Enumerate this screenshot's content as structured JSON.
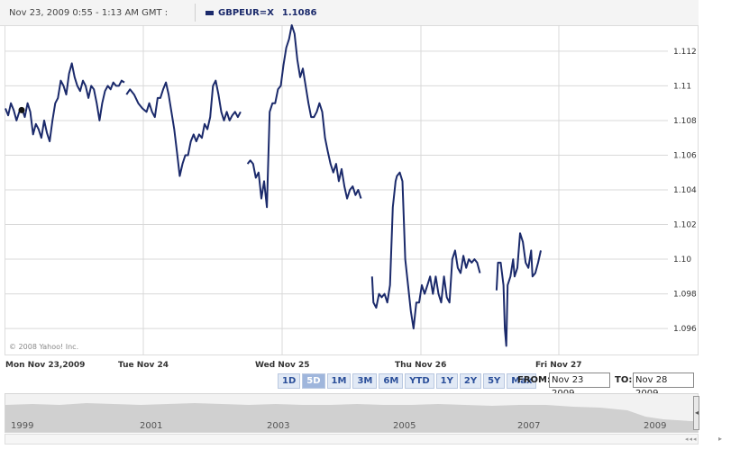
{
  "header": {
    "date_range": "Nov 23, 2009 0:55 - 1:13 AM GMT :",
    "symbol": "GBPEUR=X",
    "value": "1.1086"
  },
  "copyright": "© 2008 Yahoo! Inc.",
  "colors": {
    "line": "#1b2a6b",
    "grid": "#d9d9d9",
    "overview_fill": "#d0d0d0"
  },
  "range_buttons": [
    "1D",
    "5D",
    "1M",
    "3M",
    "6M",
    "YTD",
    "1Y",
    "2Y",
    "5Y",
    "Max"
  ],
  "active_range": "5D",
  "from_label": "FROM:",
  "from_value": "Nov 23 2009",
  "to_label": "TO:",
  "to_value": "Nov 28 2009",
  "overview_years": [
    "1999",
    "2001",
    "2003",
    "2005",
    "2007",
    "2009"
  ],
  "chart_data": {
    "type": "line",
    "series_name": "GBPEUR=X",
    "y_ticks": [
      1.096,
      1.098,
      1.1,
      1.102,
      1.104,
      1.106,
      1.108,
      1.11,
      1.112
    ],
    "y_tick_labels": [
      "1.096",
      "1.098",
      "1.10",
      "1.102",
      "1.104",
      "1.106",
      "1.108",
      "1.11",
      "1.112"
    ],
    "ylim": [
      1.0945,
      1.1135
    ],
    "x_tick_labels": [
      "Mon Nov 23,2009",
      "Tue Nov 24",
      "Wed Nov 25",
      "Thu Nov 26",
      "Fri Nov 27"
    ],
    "grid": true,
    "segments": [
      [
        [
          0.0,
          1.1087
        ],
        [
          0.04,
          1.1083
        ],
        [
          0.08,
          1.109
        ],
        [
          0.12,
          1.1086
        ],
        [
          0.16,
          1.108
        ],
        [
          0.2,
          1.1085
        ],
        [
          0.24,
          1.1087
        ],
        [
          0.28,
          1.1082
        ],
        [
          0.32,
          1.109
        ],
        [
          0.36,
          1.1085
        ],
        [
          0.4,
          1.1072
        ],
        [
          0.44,
          1.1078
        ],
        [
          0.48,
          1.1075
        ],
        [
          0.52,
          1.107
        ],
        [
          0.56,
          1.108
        ],
        [
          0.6,
          1.1073
        ],
        [
          0.64,
          1.1068
        ],
        [
          0.68,
          1.108
        ],
        [
          0.72,
          1.109
        ],
        [
          0.76,
          1.1093
        ],
        [
          0.8,
          1.1103
        ],
        [
          0.84,
          1.11
        ],
        [
          0.88,
          1.1095
        ],
        [
          0.92,
          1.1107
        ],
        [
          0.96,
          1.1113
        ],
        [
          1.0,
          1.1105
        ],
        [
          1.04,
          1.11
        ],
        [
          1.08,
          1.1097
        ],
        [
          1.12,
          1.1103
        ],
        [
          1.16,
          1.11
        ],
        [
          1.2,
          1.1093
        ],
        [
          1.24,
          1.11
        ],
        [
          1.28,
          1.1098
        ],
        [
          1.32,
          1.109
        ],
        [
          1.36,
          1.108
        ],
        [
          1.4,
          1.109
        ],
        [
          1.44,
          1.1097
        ],
        [
          1.48,
          1.11
        ],
        [
          1.52,
          1.1098
        ],
        [
          1.56,
          1.1102
        ],
        [
          1.6,
          1.11
        ],
        [
          1.64,
          1.11
        ],
        [
          1.68,
          1.1103
        ],
        [
          1.72,
          1.1102
        ]
      ],
      [
        [
          1.75,
          1.1095
        ],
        [
          1.8,
          1.1098
        ],
        [
          1.86,
          1.1095
        ],
        [
          1.92,
          1.109
        ],
        [
          1.98,
          1.1087
        ],
        [
          2.04,
          1.1085
        ],
        [
          2.08,
          1.109
        ],
        [
          2.12,
          1.1085
        ],
        [
          2.16,
          1.1082
        ],
        [
          2.2,
          1.1093
        ],
        [
          2.24,
          1.1093
        ],
        [
          2.28,
          1.1098
        ],
        [
          2.32,
          1.1102
        ],
        [
          2.36,
          1.1095
        ],
        [
          2.4,
          1.1085
        ],
        [
          2.44,
          1.1075
        ],
        [
          2.48,
          1.1062
        ],
        [
          2.52,
          1.1048
        ],
        [
          2.56,
          1.1055
        ],
        [
          2.6,
          1.106
        ],
        [
          2.64,
          1.106
        ],
        [
          2.68,
          1.1068
        ],
        [
          2.72,
          1.1072
        ],
        [
          2.76,
          1.1068
        ],
        [
          2.8,
          1.1072
        ],
        [
          2.84,
          1.107
        ],
        [
          2.88,
          1.1078
        ],
        [
          2.92,
          1.1075
        ],
        [
          2.96,
          1.1082
        ],
        [
          3.0,
          1.11
        ],
        [
          3.04,
          1.1103
        ],
        [
          3.08,
          1.1095
        ],
        [
          3.12,
          1.1085
        ],
        [
          3.16,
          1.108
        ],
        [
          3.2,
          1.1085
        ],
        [
          3.24,
          1.108
        ],
        [
          3.28,
          1.1083
        ],
        [
          3.32,
          1.1085
        ],
        [
          3.36,
          1.1082
        ],
        [
          3.4,
          1.1085
        ]
      ],
      [
        [
          3.5,
          1.1055
        ],
        [
          3.54,
          1.1057
        ],
        [
          3.58,
          1.1055
        ],
        [
          3.62,
          1.1047
        ],
        [
          3.66,
          1.105
        ],
        [
          3.7,
          1.1035
        ],
        [
          3.74,
          1.1045
        ],
        [
          3.78,
          1.103
        ],
        [
          3.82,
          1.1085
        ],
        [
          3.86,
          1.109
        ],
        [
          3.9,
          1.109
        ],
        [
          3.94,
          1.1098
        ],
        [
          3.98,
          1.11
        ],
        [
          4.02,
          1.1112
        ],
        [
          4.06,
          1.1122
        ],
        [
          4.1,
          1.1127
        ],
        [
          4.14,
          1.1135
        ],
        [
          4.18,
          1.113
        ],
        [
          4.22,
          1.1115
        ],
        [
          4.26,
          1.1105
        ],
        [
          4.3,
          1.111
        ],
        [
          4.34,
          1.11
        ],
        [
          4.38,
          1.109
        ],
        [
          4.42,
          1.1082
        ],
        [
          4.46,
          1.1082
        ],
        [
          4.5,
          1.1085
        ],
        [
          4.54,
          1.109
        ],
        [
          4.58,
          1.1085
        ],
        [
          4.62,
          1.107
        ],
        [
          4.66,
          1.1062
        ],
        [
          4.7,
          1.1055
        ],
        [
          4.74,
          1.105
        ],
        [
          4.78,
          1.1055
        ],
        [
          4.82,
          1.1045
        ],
        [
          4.86,
          1.1052
        ],
        [
          4.9,
          1.1042
        ],
        [
          4.94,
          1.1035
        ],
        [
          4.98,
          1.104
        ],
        [
          5.02,
          1.1042
        ],
        [
          5.06,
          1.1037
        ],
        [
          5.1,
          1.104
        ],
        [
          5.14,
          1.1035
        ]
      ],
      [
        [
          5.3,
          1.099
        ],
        [
          5.32,
          1.0975
        ],
        [
          5.36,
          1.0972
        ],
        [
          5.4,
          1.098
        ],
        [
          5.44,
          1.0978
        ],
        [
          5.48,
          1.098
        ],
        [
          5.52,
          1.0975
        ],
        [
          5.56,
          1.0985
        ],
        [
          5.6,
          1.103
        ],
        [
          5.64,
          1.1045
        ],
        [
          5.66,
          1.1048
        ],
        [
          5.7,
          1.105
        ],
        [
          5.74,
          1.1045
        ],
        [
          5.78,
          1.1
        ],
        [
          5.82,
          1.0985
        ],
        [
          5.86,
          1.097
        ],
        [
          5.9,
          1.096
        ],
        [
          5.94,
          1.0975
        ],
        [
          5.98,
          1.0975
        ],
        [
          6.02,
          1.0985
        ],
        [
          6.06,
          1.098
        ],
        [
          6.1,
          1.0985
        ],
        [
          6.14,
          1.099
        ],
        [
          6.18,
          1.098
        ],
        [
          6.22,
          1.099
        ],
        [
          6.26,
          1.098
        ],
        [
          6.3,
          1.0975
        ],
        [
          6.34,
          1.099
        ],
        [
          6.38,
          1.0978
        ],
        [
          6.42,
          1.0975
        ],
        [
          6.46,
          1.1
        ],
        [
          6.5,
          1.1005
        ],
        [
          6.54,
          1.0995
        ],
        [
          6.58,
          1.0992
        ],
        [
          6.62,
          1.1002
        ],
        [
          6.66,
          1.0995
        ],
        [
          6.7,
          1.1
        ],
        [
          6.74,
          1.0998
        ],
        [
          6.78,
          1.1
        ],
        [
          6.82,
          1.0998
        ],
        [
          6.86,
          1.0992
        ]
      ],
      [
        [
          7.1,
          1.0982
        ],
        [
          7.12,
          1.0998
        ],
        [
          7.16,
          1.0998
        ],
        [
          7.2,
          1.0985
        ],
        [
          7.22,
          1.096
        ],
        [
          7.24,
          1.095
        ],
        [
          7.26,
          1.0985
        ],
        [
          7.3,
          1.099
        ],
        [
          7.34,
          1.1
        ],
        [
          7.36,
          1.099
        ],
        [
          7.4,
          1.0995
        ],
        [
          7.44,
          1.1015
        ],
        [
          7.48,
          1.101
        ],
        [
          7.52,
          1.0998
        ],
        [
          7.56,
          1.0995
        ],
        [
          7.6,
          1.1005
        ],
        [
          7.62,
          1.099
        ],
        [
          7.66,
          1.0992
        ],
        [
          7.7,
          1.0998
        ],
        [
          7.74,
          1.1005
        ]
      ]
    ]
  }
}
